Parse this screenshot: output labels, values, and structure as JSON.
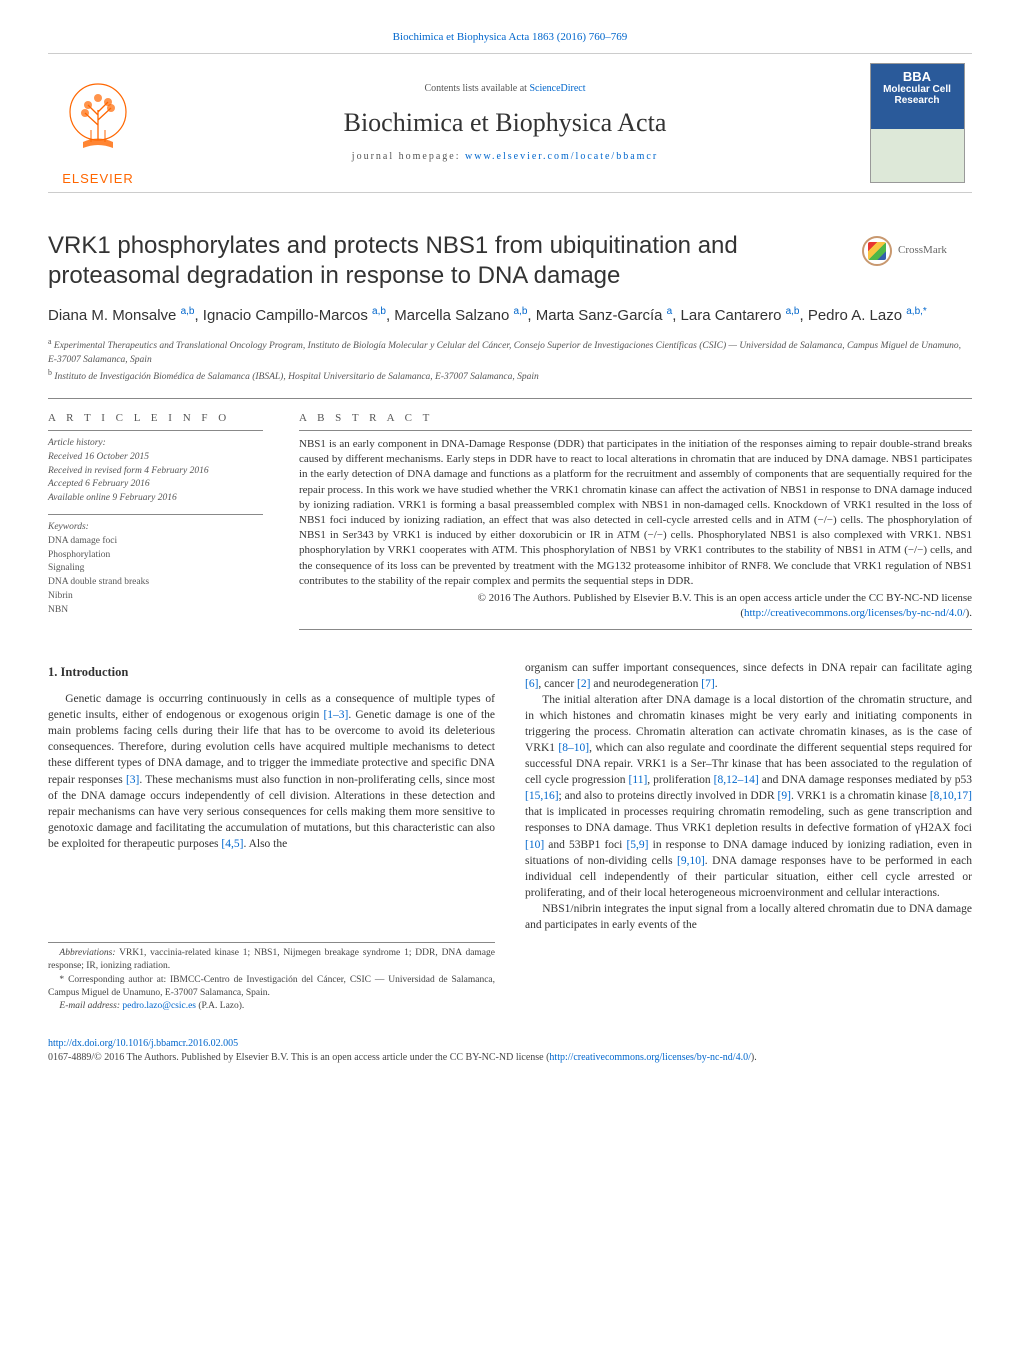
{
  "citation": "Biochimica et Biophysica Acta 1863 (2016) 760–769",
  "contents_line_prefix": "Contents lists available at ",
  "contents_line_link": "ScienceDirect",
  "journal_name": "Biochimica et Biophysica Acta",
  "homepage_prefix": "journal homepage: ",
  "homepage_link": "www.elsevier.com/locate/bbamcr",
  "elsevier_label": "ELSEVIER",
  "cover_label": "Molecular Cell Research",
  "crossmark_label": "CrossMark",
  "title": "VRK1 phosphorylates and protects NBS1 from ubiquitination and proteasomal degradation in response to DNA damage",
  "authors_html": "Diana M. Monsalve <sup>a,b</sup>, Ignacio Campillo-Marcos <sup>a,b</sup>, Marcella Salzano <sup>a,b</sup>, Marta Sanz-García <sup>a</sup>, Lara Cantarero <sup>a,b</sup>, Pedro A. Lazo <sup>a,b,*</sup>",
  "affiliations": {
    "a": "Experimental Therapeutics and Translational Oncology Program, Instituto de Biología Molecular y Celular del Cáncer, Consejo Superior de Investigaciones Científicas (CSIC) — Universidad de Salamanca, Campus Miguel de Unamuno, E-37007 Salamanca, Spain",
    "b": "Instituto de Investigación Biomédica de Salamanca (IBSAL), Hospital Universitario de Salamanca, E-37007 Salamanca, Spain"
  },
  "info_head": "A R T I C L E   I N F O",
  "abstract_head": "A B S T R A C T",
  "history": {
    "label": "Article history:",
    "received": "Received 16 October 2015",
    "revised": "Received in revised form 4 February 2016",
    "accepted": "Accepted 6 February 2016",
    "online": "Available online 9 February 2016"
  },
  "keywords": {
    "label": "Keywords:",
    "items": [
      "DNA damage foci",
      "Phosphorylation",
      "Signaling",
      "DNA double strand breaks",
      "Nibrin",
      "NBN"
    ]
  },
  "abstract": "NBS1 is an early component in DNA-Damage Response (DDR) that participates in the initiation of the responses aiming to repair double-strand breaks caused by different mechanisms. Early steps in DDR have to react to local alterations in chromatin that are induced by DNA damage. NBS1 participates in the early detection of DNA damage and functions as a platform for the recruitment and assembly of components that are sequentially required for the repair process. In this work we have studied whether the VRK1 chromatin kinase can affect the activation of NBS1 in response to DNA damage induced by ionizing radiation. VRK1 is forming a basal preassembled complex with NBS1 in non-damaged cells. Knockdown of VRK1 resulted in the loss of NBS1 foci induced by ionizing radiation, an effect that was also detected in cell-cycle arrested cells and in ATM (−/−) cells. The phosphorylation of NBS1 in Ser343 by VRK1 is induced by either doxorubicin or IR in ATM (−/−) cells. Phosphorylated NBS1 is also complexed with VRK1. NBS1 phosphorylation by VRK1 cooperates with ATM. This phosphorylation of NBS1 by VRK1 contributes to the stability of NBS1 in ATM (−/−) cells, and the consequence of its loss can be prevented by treatment with the MG132 proteasome inhibitor of RNF8. We conclude that VRK1 regulation of NBS1 contributes to the stability of the repair complex and permits the sequential steps in DDR.",
  "license_line1": "© 2016 The Authors. Published by Elsevier B.V. This is an open access article under the CC BY-NC-ND license",
  "license_link_text": "http://creativecommons.org/licenses/by-nc-nd/4.0/",
  "intro_head": "1. Introduction",
  "col1_p1": "Genetic damage is occurring continuously in cells as a consequence of multiple types of genetic insults, either of endogenous or exogenous origin [1–3]. Genetic damage is one of the main problems facing cells during their life that has to be overcome to avoid its deleterious consequences. Therefore, during evolution cells have acquired multiple mechanisms to detect these different types of DNA damage, and to trigger the immediate protective and specific DNA repair responses [3]. These mechanisms must also function in non-proliferating cells, since most of the DNA damage occurs independently of cell division. Alterations in these detection and repair mechanisms can have very serious consequences for cells making them more sensitive to genotoxic damage and facilitating the accumulation of mutations, but this characteristic can also be exploited for therapeutic purposes [4,5]. Also the",
  "col2_p1": "organism can suffer important consequences, since defects in DNA repair can facilitate aging [6], cancer [2] and neurodegeneration [7].",
  "col2_p2": "The initial alteration after DNA damage is a local distortion of the chromatin structure, and in which histones and chromatin kinases might be very early and initiating components in triggering the process. Chromatin alteration can activate chromatin kinases, as is the case of VRK1 [8–10], which can also regulate and coordinate the different sequential steps required for successful DNA repair. VRK1 is a Ser–Thr kinase that has been associated to the regulation of cell cycle progression [11], proliferation [8,12–14] and DNA damage responses mediated by p53 [15,16]; and also to proteins directly involved in DDR [9]. VRK1 is a chromatin kinase [8,10,17] that is implicated in processes requiring chromatin remodeling, such as gene transcription and responses to DNA damage. Thus VRK1 depletion results in defective formation of γH2AX foci [10] and 53BP1 foci [5,9] in response to DNA damage induced by ionizing radiation, even in situations of non-dividing cells [9,10]. DNA damage responses have to be performed in each individual cell independently of their particular situation, either cell cycle arrested or proliferating, and of their local heterogeneous microenvironment and cellular interactions.",
  "col2_p3": "NBS1/nibrin integrates the input signal from a locally altered chromatin due to DNA damage and participates in early events of the",
  "abbrev_label": "Abbreviations:",
  "abbrev_text": " VRK1, vaccinia-related kinase 1; NBS1, Nijmegen breakage syndrome 1; DDR, DNA damage response; IR, ionizing radiation.",
  "corresp_text": "Corresponding author at: IBMCC-Centro de Investigación del Cáncer, CSIC — Universidad de Salamanca, Campus Miguel de Unamuno, E-37007 Salamanca, Spain.",
  "email_label": "E-mail address: ",
  "email": "pedro.lazo@csic.es",
  "email_who": " (P.A. Lazo).",
  "doi": "http://dx.doi.org/10.1016/j.bbamcr.2016.02.005",
  "issn_line": "0167-4889/© 2016 The Authors. Published by Elsevier B.V. This is an open access article under the CC BY-NC-ND license (",
  "issn_link": "http://creativecommons.org/licenses/by-nc-nd/4.0/",
  "issn_close": ").",
  "colors": {
    "link": "#0066cc",
    "elsevier_orange": "#ff6600",
    "rule": "#888888",
    "text": "#333333"
  }
}
